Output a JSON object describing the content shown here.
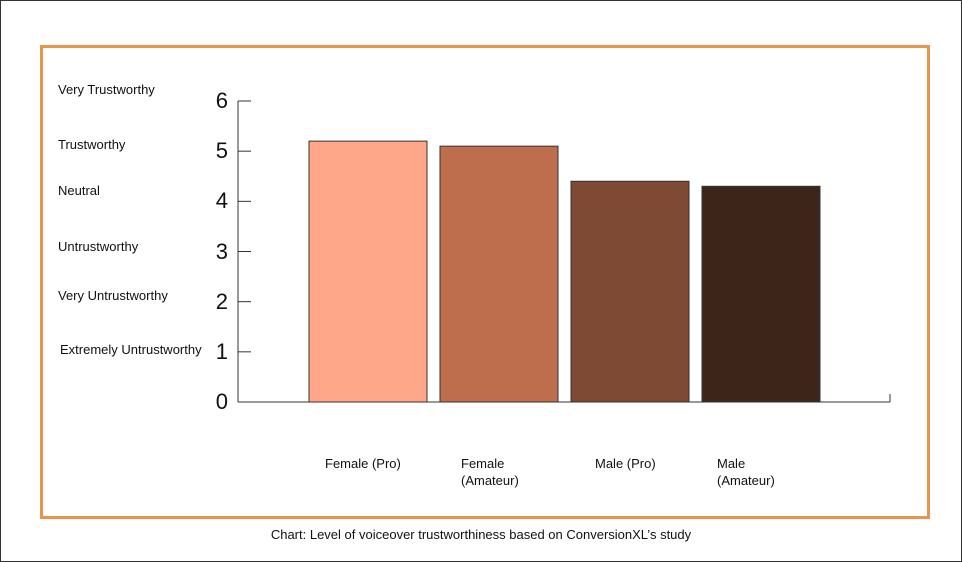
{
  "chart_data": {
    "type": "bar",
    "categories": [
      "Female (Pro)",
      "Female\n(Amateur)",
      "Male (Pro)",
      "Male\n(Amateur)"
    ],
    "values": [
      5.2,
      5.1,
      4.4,
      4.3
    ],
    "colors": [
      "#FFA788",
      "#BE6E4C",
      "#7F4A34",
      "#3E251A"
    ],
    "ylim": [
      0,
      6
    ],
    "yticks": [
      "0",
      "1",
      "2",
      "3",
      "4",
      "5",
      "6"
    ],
    "rating_labels": [
      "Very Trustworthy",
      "Trustworthy",
      "Neutral",
      "Untrustworthy",
      "Very Untrustworthy",
      "Extremely Untrustworthy"
    ],
    "caption": "Chart: Level of voiceover trustworthiness based on ConversionXL’s study",
    "frame_color": "#E8944A",
    "grid": false
  }
}
